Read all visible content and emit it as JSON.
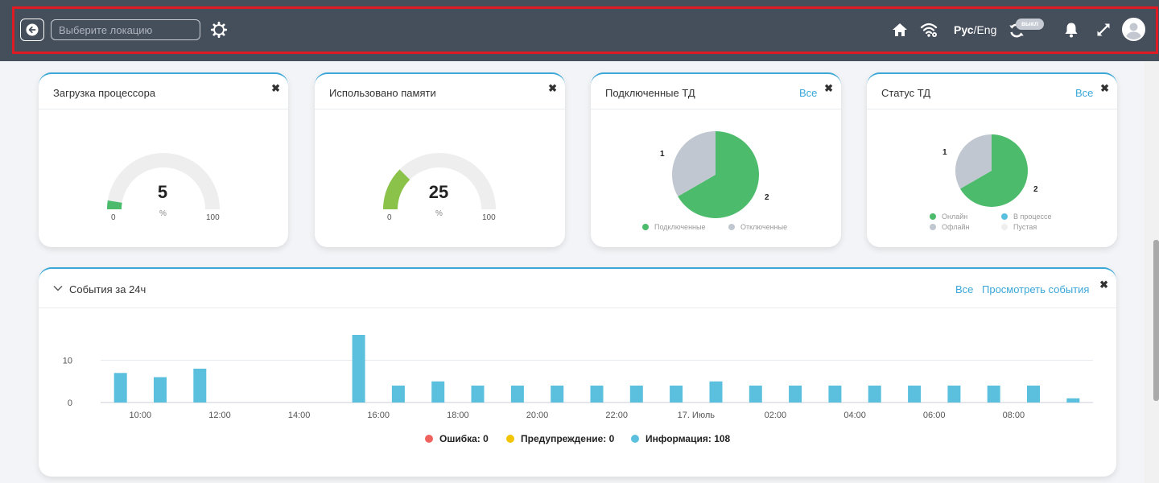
{
  "header": {
    "location_placeholder": "Выберите локацию",
    "lang_ru": "Рус",
    "lang_sep": "/",
    "lang_en": "Eng",
    "toggle_badge": "выкл",
    "icons": [
      "arrow-left-icon",
      "gear-icon",
      "home-icon",
      "wifi-icon",
      "sync-icon",
      "bell-icon",
      "expand-icon",
      "user-avatar-icon"
    ],
    "accent": "#e01b24",
    "bar_color": "#454e5b"
  },
  "cpu": {
    "title": "Загрузка процессора",
    "close": "✖",
    "value": "5",
    "unit": "%",
    "min": "0",
    "max": "100",
    "level": 5,
    "color": "#4cbb6c"
  },
  "memory": {
    "title": "Использовано памяти",
    "close": "✖",
    "value": "25",
    "unit": "%",
    "min": "0",
    "max": "100",
    "level": 25,
    "color": "#8bc34a"
  },
  "connected_ap": {
    "title": "Подключенные ТД",
    "link": "Все",
    "close": "✖",
    "slices": [
      {
        "label": "2",
        "value": 2,
        "color": "#4cbb6c"
      },
      {
        "label": "1",
        "value": 1,
        "color": "#c1c7d0"
      }
    ],
    "legend": [
      "Подключенные",
      "Отключенные"
    ]
  },
  "ap_status": {
    "title": "Статус ТД",
    "link": "Все",
    "close": "✖",
    "slices": [
      {
        "label": "2",
        "value": 2,
        "color": "#4cbb6c"
      },
      {
        "label": "1",
        "value": 1,
        "color": "#c1c7d0"
      }
    ],
    "legend": [
      {
        "label": "Онлайн",
        "color": "#4cbb6c"
      },
      {
        "label": "В процессе",
        "color": "#5bc0de"
      },
      {
        "label": "Офлайн",
        "color": "#c1c7d0"
      },
      {
        "label": "Пустая",
        "color": "#eeeeee"
      }
    ]
  },
  "events": {
    "title": "События за 24ч",
    "link_all": "Все",
    "link_view": "Просмотреть события",
    "close": "✖",
    "legend": [
      {
        "label": "Ошибка: 0",
        "color": "#f0625d"
      },
      {
        "label": "Предупреждение: 0",
        "color": "#f2c500"
      },
      {
        "label": "Информация: 108",
        "color": "#5bc0de"
      }
    ]
  },
  "chart_data": {
    "type": "bar",
    "title": "События за 24ч",
    "x_tick_labels": [
      "10:00",
      "12:00",
      "14:00",
      "16:00",
      "18:00",
      "20:00",
      "22:00",
      "17. Июль",
      "02:00",
      "04:00",
      "06:00",
      "08:00"
    ],
    "y_ticks": [
      0,
      10
    ],
    "ylim": [
      0,
      16
    ],
    "series": [
      {
        "name": "Информация",
        "color": "#5bc0de",
        "x_hours": [
          9.5,
          10.5,
          11.5,
          12.5,
          13.5,
          14.5,
          15.5,
          16.5,
          17.5,
          18.5,
          19.5,
          20.5,
          21.5,
          22.5,
          23.5,
          24.5,
          25.5,
          26.5,
          27.5,
          28.5,
          29.5,
          30.5,
          31.5,
          32.5,
          33.5
        ],
        "values": [
          7,
          6,
          8,
          0,
          0,
          0,
          16,
          4,
          5,
          4,
          4,
          4,
          4,
          4,
          4,
          5,
          4,
          4,
          4,
          4,
          4,
          4,
          4,
          4,
          1
        ]
      }
    ]
  }
}
